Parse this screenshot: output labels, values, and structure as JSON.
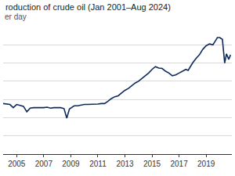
{
  "chart_data": {
    "type": "line",
    "title": "roduction of crude oil (Jan 2001–Aug 2024)",
    "subtitle": "er day",
    "x": [
      2004.0,
      2004.25,
      2004.5,
      2004.75,
      2005.0,
      2005.25,
      2005.5,
      2005.75,
      2006.0,
      2006.25,
      2006.5,
      2006.75,
      2007.0,
      2007.25,
      2007.5,
      2007.75,
      2008.0,
      2008.25,
      2008.5,
      2008.7,
      2008.9,
      2009.25,
      2009.5,
      2009.75,
      2010.0,
      2010.25,
      2010.5,
      2010.75,
      2011.0,
      2011.25,
      2011.5,
      2011.75,
      2012.0,
      2012.25,
      2012.5,
      2012.75,
      2013.0,
      2013.25,
      2013.5,
      2013.75,
      2014.0,
      2014.25,
      2014.5,
      2014.75,
      2015.0,
      2015.25,
      2015.5,
      2015.75,
      2016.0,
      2016.25,
      2016.5,
      2016.75,
      2017.0,
      2017.25,
      2017.5,
      2017.67,
      2017.85,
      2018.0,
      2018.25,
      2018.5,
      2018.75,
      2019.0,
      2019.25,
      2019.5,
      2019.67,
      2019.83,
      2020.0,
      2020.2,
      2020.37,
      2020.5,
      2020.67,
      2020.8
    ],
    "values": [
      5.55,
      5.5,
      5.45,
      5.1,
      5.45,
      5.35,
      5.25,
      4.65,
      5.05,
      5.1,
      5.1,
      5.05,
      5.1,
      5.15,
      5.05,
      5.1,
      5.1,
      5.1,
      5.0,
      3.95,
      4.95,
      5.3,
      5.3,
      5.4,
      5.45,
      5.45,
      5.45,
      5.5,
      5.5,
      5.55,
      5.55,
      5.8,
      6.1,
      6.3,
      6.4,
      6.7,
      7.0,
      7.2,
      7.5,
      7.8,
      8.0,
      8.3,
      8.6,
      8.9,
      9.3,
      9.6,
      9.45,
      9.4,
      9.1,
      8.9,
      8.6,
      8.7,
      8.9,
      9.1,
      9.3,
      9.2,
      9.7,
      10.0,
      10.5,
      10.9,
      11.5,
      11.9,
      12.1,
      12.0,
      12.4,
      12.8,
      12.8,
      12.6,
      10.0,
      11.0,
      10.4,
      10.9
    ],
    "color": "#0f2b5b",
    "xlim": [
      2004.0,
      2020.9
    ],
    "xticks": [
      2005,
      2007,
      2009,
      2011,
      2013,
      2015,
      2017,
      2019
    ],
    "ylim": [
      0,
      14
    ],
    "yticks": [
      0,
      2,
      4,
      6,
      8,
      10,
      12,
      14
    ],
    "grid": true,
    "tick_labels": "x"
  }
}
